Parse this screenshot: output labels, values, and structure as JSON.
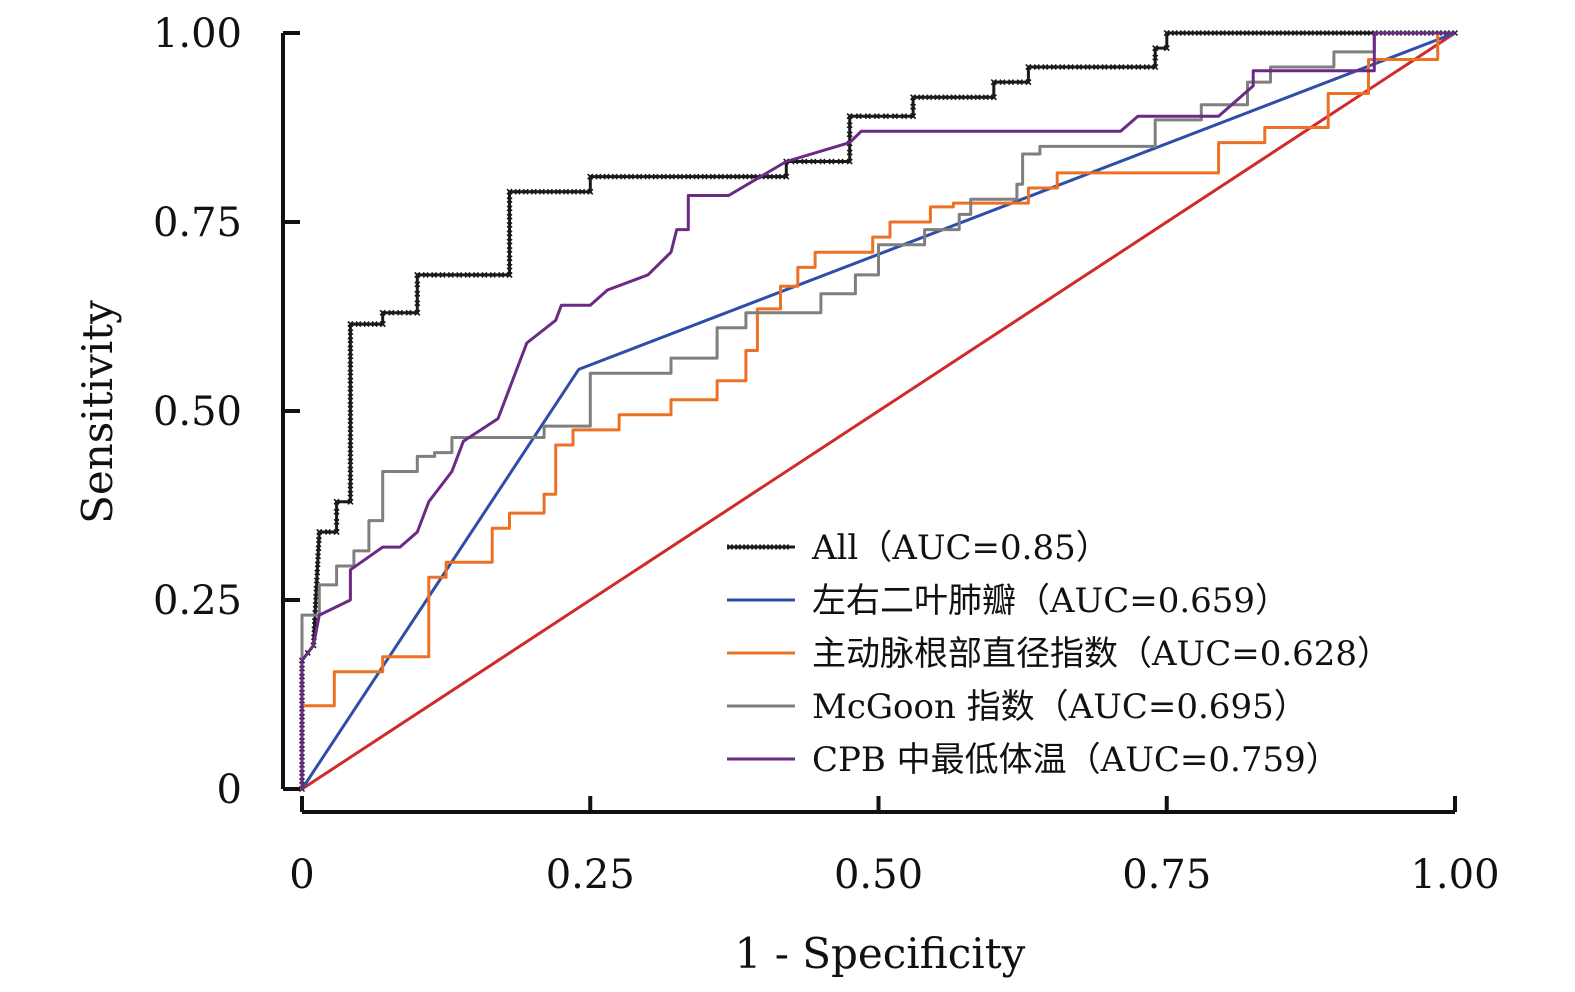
{
  "chart_data": {
    "type": "line",
    "xlabel": "1 - Specificity",
    "ylabel": "Sensitivity",
    "xlim": [
      0,
      1
    ],
    "ylim": [
      0,
      1
    ],
    "x_ticks": [
      "0",
      "0.25",
      "0.50",
      "0.75",
      "1.00"
    ],
    "y_ticks": [
      "0",
      "0.25",
      "0.50",
      "0.75",
      "1.00"
    ],
    "grid": false,
    "legend_position": "bottom-right",
    "series": [
      {
        "name": "All（AUC=0.85）",
        "color": "#1a1a1a",
        "marker": "x",
        "points": [
          [
            0,
            0
          ],
          [
            0,
            0.17
          ],
          [
            0.01,
            0.19
          ],
          [
            0.015,
            0.34
          ],
          [
            0.03,
            0.34
          ],
          [
            0.03,
            0.38
          ],
          [
            0.042,
            0.38
          ],
          [
            0.042,
            0.615
          ],
          [
            0.07,
            0.615
          ],
          [
            0.07,
            0.63
          ],
          [
            0.1,
            0.63
          ],
          [
            0.1,
            0.68
          ],
          [
            0.18,
            0.68
          ],
          [
            0.18,
            0.79
          ],
          [
            0.25,
            0.79
          ],
          [
            0.25,
            0.81
          ],
          [
            0.42,
            0.81
          ],
          [
            0.42,
            0.83
          ],
          [
            0.475,
            0.83
          ],
          [
            0.475,
            0.89
          ],
          [
            0.53,
            0.89
          ],
          [
            0.53,
            0.915
          ],
          [
            0.6,
            0.915
          ],
          [
            0.6,
            0.935
          ],
          [
            0.63,
            0.935
          ],
          [
            0.63,
            0.955
          ],
          [
            0.74,
            0.955
          ],
          [
            0.74,
            0.98
          ],
          [
            0.75,
            0.98
          ],
          [
            0.75,
            1.0
          ],
          [
            1.0,
            1.0
          ]
        ]
      },
      {
        "name": "左右二叶肺瓣（AUC=0.659）",
        "color": "#2e4ea8",
        "marker": "none",
        "points": [
          [
            0,
            0
          ],
          [
            0.24,
            0.555
          ],
          [
            1.0,
            1.0
          ]
        ]
      },
      {
        "name": "主动脉根部直径指数（AUC=0.628）",
        "color": "#ec7124",
        "marker": "none",
        "points": [
          [
            0,
            0
          ],
          [
            0,
            0.11
          ],
          [
            0.028,
            0.11
          ],
          [
            0.028,
            0.155
          ],
          [
            0.07,
            0.155
          ],
          [
            0.07,
            0.175
          ],
          [
            0.11,
            0.175
          ],
          [
            0.11,
            0.28
          ],
          [
            0.125,
            0.28
          ],
          [
            0.125,
            0.3
          ],
          [
            0.165,
            0.3
          ],
          [
            0.165,
            0.345
          ],
          [
            0.18,
            0.345
          ],
          [
            0.18,
            0.365
          ],
          [
            0.21,
            0.365
          ],
          [
            0.21,
            0.39
          ],
          [
            0.22,
            0.39
          ],
          [
            0.22,
            0.455
          ],
          [
            0.235,
            0.455
          ],
          [
            0.235,
            0.475
          ],
          [
            0.275,
            0.475
          ],
          [
            0.275,
            0.495
          ],
          [
            0.32,
            0.495
          ],
          [
            0.32,
            0.515
          ],
          [
            0.36,
            0.515
          ],
          [
            0.36,
            0.54
          ],
          [
            0.385,
            0.54
          ],
          [
            0.385,
            0.58
          ],
          [
            0.395,
            0.58
          ],
          [
            0.395,
            0.635
          ],
          [
            0.415,
            0.635
          ],
          [
            0.415,
            0.665
          ],
          [
            0.43,
            0.665
          ],
          [
            0.43,
            0.69
          ],
          [
            0.445,
            0.69
          ],
          [
            0.445,
            0.71
          ],
          [
            0.495,
            0.71
          ],
          [
            0.495,
            0.73
          ],
          [
            0.51,
            0.73
          ],
          [
            0.51,
            0.75
          ],
          [
            0.545,
            0.75
          ],
          [
            0.545,
            0.77
          ],
          [
            0.565,
            0.77
          ],
          [
            0.565,
            0.775
          ],
          [
            0.63,
            0.775
          ],
          [
            0.63,
            0.795
          ],
          [
            0.655,
            0.795
          ],
          [
            0.655,
            0.815
          ],
          [
            0.795,
            0.815
          ],
          [
            0.795,
            0.855
          ],
          [
            0.835,
            0.855
          ],
          [
            0.835,
            0.875
          ],
          [
            0.89,
            0.875
          ],
          [
            0.89,
            0.92
          ],
          [
            0.925,
            0.92
          ],
          [
            0.925,
            0.965
          ],
          [
            0.985,
            0.965
          ],
          [
            0.985,
            1.0
          ]
        ]
      },
      {
        "name": "McGoon 指数（AUC=0.695）",
        "color": "#7f7f7f",
        "marker": "none",
        "points": [
          [
            0,
            0
          ],
          [
            0,
            0.23
          ],
          [
            0.015,
            0.23
          ],
          [
            0.015,
            0.27
          ],
          [
            0.03,
            0.27
          ],
          [
            0.03,
            0.295
          ],
          [
            0.045,
            0.295
          ],
          [
            0.045,
            0.315
          ],
          [
            0.058,
            0.315
          ],
          [
            0.058,
            0.355
          ],
          [
            0.07,
            0.355
          ],
          [
            0.07,
            0.42
          ],
          [
            0.1,
            0.42
          ],
          [
            0.1,
            0.44
          ],
          [
            0.115,
            0.44
          ],
          [
            0.115,
            0.445
          ],
          [
            0.13,
            0.445
          ],
          [
            0.13,
            0.465
          ],
          [
            0.21,
            0.465
          ],
          [
            0.21,
            0.48
          ],
          [
            0.25,
            0.48
          ],
          [
            0.25,
            0.55
          ],
          [
            0.32,
            0.55
          ],
          [
            0.32,
            0.57
          ],
          [
            0.36,
            0.57
          ],
          [
            0.36,
            0.61
          ],
          [
            0.385,
            0.61
          ],
          [
            0.385,
            0.63
          ],
          [
            0.45,
            0.63
          ],
          [
            0.45,
            0.655
          ],
          [
            0.48,
            0.655
          ],
          [
            0.48,
            0.68
          ],
          [
            0.5,
            0.68
          ],
          [
            0.5,
            0.72
          ],
          [
            0.54,
            0.72
          ],
          [
            0.54,
            0.74
          ],
          [
            0.57,
            0.74
          ],
          [
            0.57,
            0.76
          ],
          [
            0.58,
            0.76
          ],
          [
            0.58,
            0.78
          ],
          [
            0.62,
            0.78
          ],
          [
            0.62,
            0.8
          ],
          [
            0.625,
            0.8
          ],
          [
            0.625,
            0.84
          ],
          [
            0.64,
            0.84
          ],
          [
            0.64,
            0.85
          ],
          [
            0.74,
            0.85
          ],
          [
            0.74,
            0.885
          ],
          [
            0.78,
            0.885
          ],
          [
            0.78,
            0.905
          ],
          [
            0.82,
            0.905
          ],
          [
            0.82,
            0.935
          ],
          [
            0.84,
            0.935
          ],
          [
            0.84,
            0.955
          ],
          [
            0.895,
            0.955
          ],
          [
            0.895,
            0.975
          ],
          [
            0.93,
            0.975
          ],
          [
            0.93,
            1.0
          ],
          [
            1.0,
            1.0
          ]
        ]
      },
      {
        "name": "CPB 中最低体温（AUC=0.759）",
        "color": "#6b2a83",
        "marker": "none",
        "points": [
          [
            0,
            0
          ],
          [
            0,
            0.17
          ],
          [
            0.01,
            0.19
          ],
          [
            0.015,
            0.23
          ],
          [
            0.042,
            0.25
          ],
          [
            0.042,
            0.29
          ],
          [
            0.07,
            0.32
          ],
          [
            0.085,
            0.32
          ],
          [
            0.1,
            0.34
          ],
          [
            0.11,
            0.38
          ],
          [
            0.13,
            0.42
          ],
          [
            0.14,
            0.46
          ],
          [
            0.17,
            0.49
          ],
          [
            0.195,
            0.59
          ],
          [
            0.22,
            0.62
          ],
          [
            0.225,
            0.64
          ],
          [
            0.25,
            0.64
          ],
          [
            0.265,
            0.66
          ],
          [
            0.3,
            0.68
          ],
          [
            0.32,
            0.71
          ],
          [
            0.325,
            0.74
          ],
          [
            0.335,
            0.74
          ],
          [
            0.335,
            0.785
          ],
          [
            0.37,
            0.785
          ],
          [
            0.42,
            0.83
          ],
          [
            0.475,
            0.855
          ],
          [
            0.485,
            0.87
          ],
          [
            0.71,
            0.87
          ],
          [
            0.725,
            0.89
          ],
          [
            0.795,
            0.89
          ],
          [
            0.825,
            0.93
          ],
          [
            0.825,
            0.95
          ],
          [
            0.93,
            0.95
          ],
          [
            0.93,
            1.0
          ],
          [
            1.0,
            1.0
          ]
        ]
      },
      {
        "name": "",
        "color": "#d22a2a",
        "marker": "none",
        "points": [
          [
            0,
            0
          ],
          [
            1.0,
            1.0
          ]
        ]
      }
    ]
  }
}
